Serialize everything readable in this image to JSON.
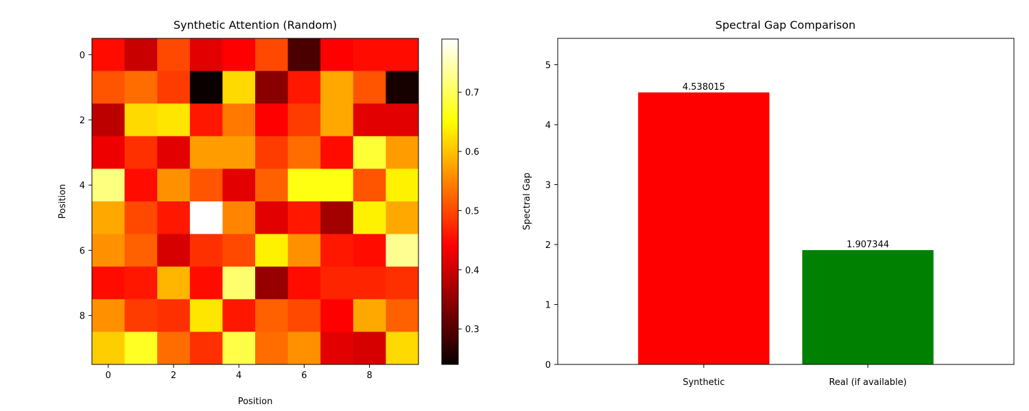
{
  "chart_data": [
    {
      "type": "heatmap",
      "title": "Synthetic Attention (Random)",
      "xlabel": "Position",
      "ylabel": "Position",
      "x_ticks": [
        "0",
        "2",
        "4",
        "6",
        "8"
      ],
      "y_ticks": [
        "0",
        "2",
        "4",
        "6",
        "8"
      ],
      "colormap": "hot",
      "colorbar": {
        "range": [
          0.24,
          0.79
        ],
        "ticks": [
          "0.3",
          "0.4",
          "0.5",
          "0.6",
          "0.7"
        ]
      },
      "values": [
        [
          0.45,
          0.39,
          0.5,
          0.41,
          0.44,
          0.5,
          0.29,
          0.44,
          0.45,
          0.45
        ],
        [
          0.51,
          0.53,
          0.49,
          0.24,
          0.62,
          0.34,
          0.46,
          0.58,
          0.51,
          0.25
        ],
        [
          0.38,
          0.62,
          0.63,
          0.46,
          0.54,
          0.44,
          0.49,
          0.58,
          0.41,
          0.41
        ],
        [
          0.42,
          0.48,
          0.41,
          0.57,
          0.57,
          0.49,
          0.53,
          0.45,
          0.68,
          0.57
        ],
        [
          0.72,
          0.45,
          0.56,
          0.51,
          0.41,
          0.52,
          0.66,
          0.66,
          0.51,
          0.64
        ],
        [
          0.58,
          0.5,
          0.46,
          0.79,
          0.55,
          0.41,
          0.46,
          0.36,
          0.64,
          0.58
        ],
        [
          0.56,
          0.52,
          0.4,
          0.48,
          0.5,
          0.64,
          0.56,
          0.46,
          0.45,
          0.73
        ],
        [
          0.45,
          0.46,
          0.59,
          0.45,
          0.71,
          0.35,
          0.45,
          0.47,
          0.47,
          0.48
        ],
        [
          0.56,
          0.49,
          0.48,
          0.63,
          0.46,
          0.52,
          0.5,
          0.44,
          0.58,
          0.52
        ],
        [
          0.61,
          0.67,
          0.53,
          0.48,
          0.69,
          0.53,
          0.56,
          0.41,
          0.4,
          0.62
        ]
      ]
    },
    {
      "type": "bar",
      "title": "Spectral Gap Comparison",
      "xlabel": "",
      "ylabel": "Spectral Gap",
      "categories": [
        "Synthetic",
        "Real (if available)"
      ],
      "values": [
        4.538015,
        1.907344
      ],
      "value_labels": [
        "4.538015",
        "1.907344"
      ],
      "colors": [
        "#ff0000",
        "#008000"
      ],
      "ylim": [
        0,
        5.44
      ],
      "y_ticks": [
        "0",
        "1",
        "2",
        "3",
        "4",
        "5"
      ]
    }
  ]
}
